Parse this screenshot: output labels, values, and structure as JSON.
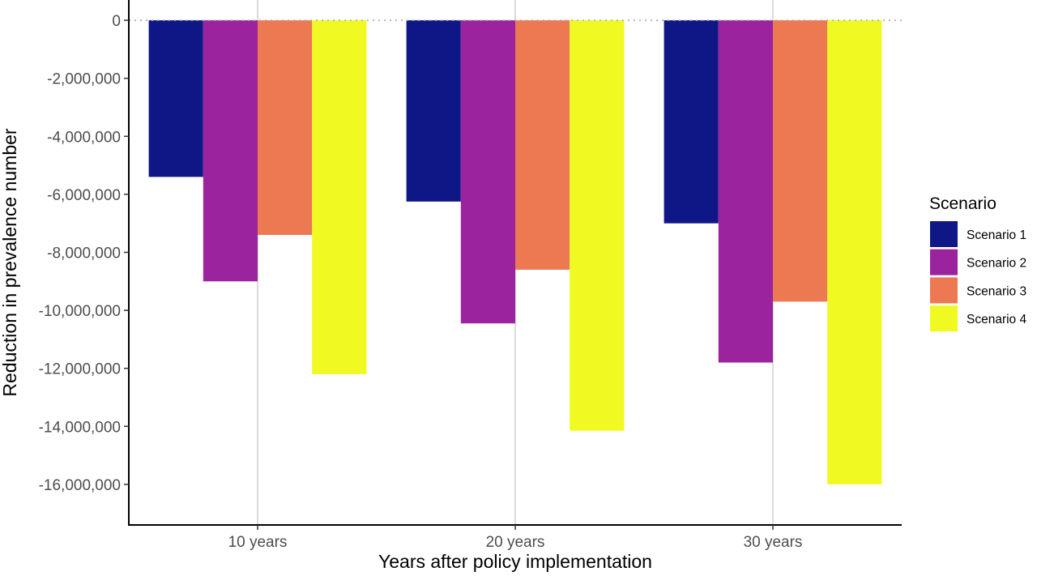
{
  "chart_data": {
    "type": "bar",
    "xlabel": "Years after policy implementation",
    "ylabel": "Reduction in prevalence number",
    "categories": [
      "10 years",
      "20 years",
      "30 years"
    ],
    "series": [
      {
        "name": "Scenario 1",
        "color": "#0f1787",
        "values": [
          -5400000,
          -6250000,
          -7000000
        ]
      },
      {
        "name": "Scenario 2",
        "color": "#9b249e",
        "values": [
          -9000000,
          -10450000,
          -11800000
        ]
      },
      {
        "name": "Scenario 3",
        "color": "#ed7953",
        "values": [
          -7400000,
          -8600000,
          -9700000
        ]
      },
      {
        "name": "Scenario 4",
        "color": "#f0f921",
        "values": [
          -12200000,
          -14150000,
          -16000000
        ]
      }
    ],
    "ylim": [
      -17400000,
      700000
    ],
    "yticks": [
      0,
      -2000000,
      -4000000,
      -6000000,
      -8000000,
      -10000000,
      -12000000,
      -14000000,
      -16000000
    ],
    "ytick_labels": [
      "0",
      "-2,000,000",
      "-4,000,000",
      "-6,000,000",
      "-8,000,000",
      "-10,000,000",
      "-12,000,000",
      "-14,000,000",
      "-16,000,000"
    ],
    "zero_line": "dotted",
    "grid": "vertical major only",
    "legend": {
      "title": "Scenario",
      "position": "right"
    }
  }
}
